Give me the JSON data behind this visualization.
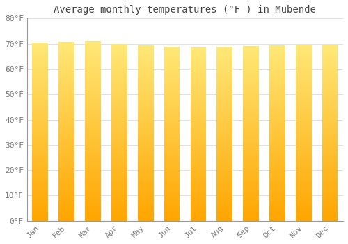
{
  "title": "Average monthly temperatures (°F ) in Mubende",
  "months": [
    "Jan",
    "Feb",
    "Mar",
    "Apr",
    "May",
    "Jun",
    "Jul",
    "Aug",
    "Sep",
    "Oct",
    "Nov",
    "Dec"
  ],
  "values": [
    70.5,
    70.7,
    70.9,
    69.8,
    69.4,
    68.9,
    68.5,
    68.7,
    69.1,
    69.3,
    69.6,
    69.5
  ],
  "bar_color_bottom": "#FFA500",
  "bar_color_mid": "#FFD060",
  "bar_color_top": "#FFF0A0",
  "background_color": "#FFFFFF",
  "ylim": [
    0,
    80
  ],
  "yticks": [
    0,
    10,
    20,
    30,
    40,
    50,
    60,
    70,
    80
  ],
  "ytick_labels": [
    "0°F",
    "10°F",
    "20°F",
    "30°F",
    "40°F",
    "50°F",
    "60°F",
    "70°F",
    "80°F"
  ],
  "grid_color": "#E0E0E0",
  "title_fontsize": 10,
  "tick_fontsize": 8,
  "font_family": "monospace"
}
